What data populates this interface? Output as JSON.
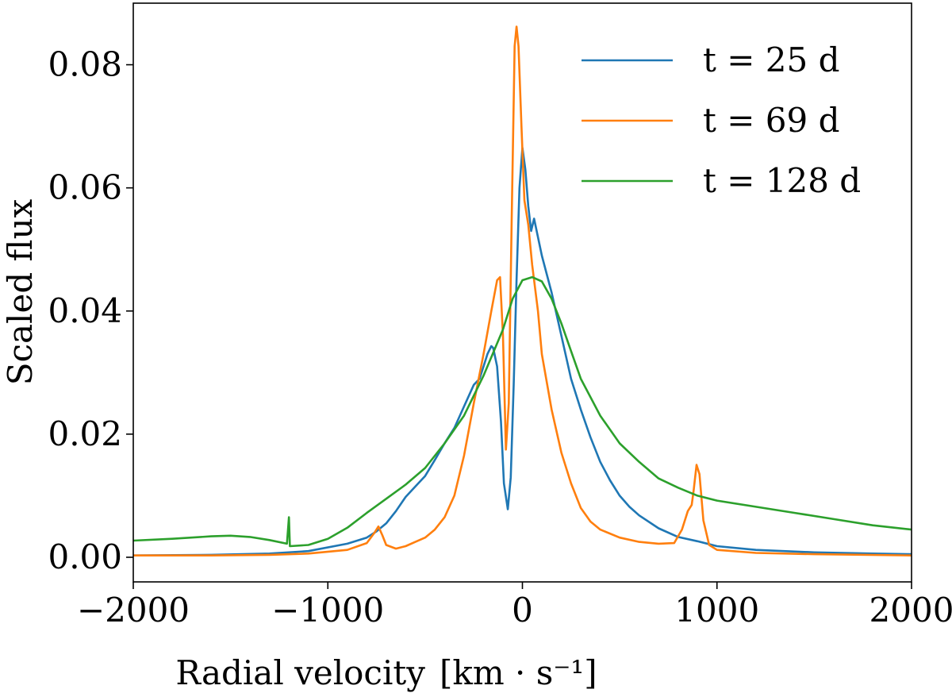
{
  "chart_data": {
    "type": "line",
    "title": "",
    "xlabel": "Radial velocity",
    "xlabel_unit": "[km · s⁻¹]",
    "ylabel": "Scaled flux",
    "xlim": [
      -2000,
      2000
    ],
    "ylim": [
      -0.004,
      0.09
    ],
    "xticks": [
      -2000,
      -1000,
      0,
      1000,
      2000
    ],
    "xtick_labels": [
      "−2000",
      "−1000",
      "0",
      "1000",
      "2000"
    ],
    "yticks": [
      0.0,
      0.02,
      0.04,
      0.06,
      0.08
    ],
    "ytick_labels": [
      "0.00",
      "0.02",
      "0.04",
      "0.06",
      "0.08"
    ],
    "legend_position": "top-right",
    "series": [
      {
        "name": "t = 25 d",
        "color": "#1f77b4",
        "points": [
          [
            -2000,
            0.0003
          ],
          [
            -1600,
            0.0004
          ],
          [
            -1300,
            0.0006
          ],
          [
            -1100,
            0.001
          ],
          [
            -900,
            0.0022
          ],
          [
            -800,
            0.0032
          ],
          [
            -750,
            0.0042
          ],
          [
            -700,
            0.0055
          ],
          [
            -650,
            0.0075
          ],
          [
            -600,
            0.0098
          ],
          [
            -550,
            0.0115
          ],
          [
            -500,
            0.0132
          ],
          [
            -450,
            0.0158
          ],
          [
            -400,
            0.0185
          ],
          [
            -350,
            0.021
          ],
          [
            -300,
            0.0245
          ],
          [
            -250,
            0.028
          ],
          [
            -220,
            0.029
          ],
          [
            -200,
            0.031
          ],
          [
            -180,
            0.033
          ],
          [
            -160,
            0.0343
          ],
          [
            -150,
            0.034
          ],
          [
            -130,
            0.031
          ],
          [
            -110,
            0.022
          ],
          [
            -95,
            0.012
          ],
          [
            -75,
            0.0078
          ],
          [
            -60,
            0.013
          ],
          [
            -45,
            0.028
          ],
          [
            -30,
            0.045
          ],
          [
            -15,
            0.06
          ],
          [
            0,
            0.0665
          ],
          [
            15,
            0.063
          ],
          [
            30,
            0.057
          ],
          [
            45,
            0.053
          ],
          [
            60,
            0.055
          ],
          [
            80,
            0.052
          ],
          [
            100,
            0.049
          ],
          [
            150,
            0.043
          ],
          [
            200,
            0.036
          ],
          [
            250,
            0.029
          ],
          [
            300,
            0.024
          ],
          [
            350,
            0.0195
          ],
          [
            400,
            0.0155
          ],
          [
            450,
            0.0125
          ],
          [
            500,
            0.01
          ],
          [
            550,
            0.0082
          ],
          [
            600,
            0.0068
          ],
          [
            700,
            0.0047
          ],
          [
            800,
            0.0033
          ],
          [
            900,
            0.0026
          ],
          [
            1000,
            0.0018
          ],
          [
            1200,
            0.0012
          ],
          [
            1500,
            0.0008
          ],
          [
            1800,
            0.0006
          ],
          [
            2000,
            0.0005
          ]
        ]
      },
      {
        "name": "t = 69 d",
        "color": "#ff7f0e",
        "points": [
          [
            -2000,
            0.0003
          ],
          [
            -1600,
            0.0003
          ],
          [
            -1300,
            0.0004
          ],
          [
            -1100,
            0.0006
          ],
          [
            -900,
            0.0012
          ],
          [
            -800,
            0.0023
          ],
          [
            -760,
            0.004
          ],
          [
            -740,
            0.005
          ],
          [
            -720,
            0.0036
          ],
          [
            -700,
            0.002
          ],
          [
            -650,
            0.0014
          ],
          [
            -600,
            0.0018
          ],
          [
            -550,
            0.0025
          ],
          [
            -500,
            0.0032
          ],
          [
            -450,
            0.0045
          ],
          [
            -400,
            0.0065
          ],
          [
            -350,
            0.01
          ],
          [
            -300,
            0.0165
          ],
          [
            -250,
            0.025
          ],
          [
            -200,
            0.033
          ],
          [
            -160,
            0.04
          ],
          [
            -130,
            0.045
          ],
          [
            -115,
            0.0455
          ],
          [
            -100,
            0.036
          ],
          [
            -85,
            0.0175
          ],
          [
            -70,
            0.025
          ],
          [
            -55,
            0.055
          ],
          [
            -40,
            0.083
          ],
          [
            -30,
            0.0862
          ],
          [
            -20,
            0.083
          ],
          [
            -5,
            0.07
          ],
          [
            10,
            0.058
          ],
          [
            30,
            0.054
          ],
          [
            50,
            0.0475
          ],
          [
            80,
            0.04
          ],
          [
            100,
            0.033
          ],
          [
            150,
            0.024
          ],
          [
            200,
            0.017
          ],
          [
            250,
            0.012
          ],
          [
            300,
            0.008
          ],
          [
            350,
            0.0058
          ],
          [
            400,
            0.0045
          ],
          [
            500,
            0.0032
          ],
          [
            600,
            0.0025
          ],
          [
            700,
            0.0022
          ],
          [
            780,
            0.0023
          ],
          [
            820,
            0.0045
          ],
          [
            850,
            0.0075
          ],
          [
            870,
            0.0085
          ],
          [
            880,
            0.0108
          ],
          [
            895,
            0.015
          ],
          [
            910,
            0.0135
          ],
          [
            930,
            0.006
          ],
          [
            960,
            0.002
          ],
          [
            1000,
            0.0012
          ],
          [
            1200,
            0.0007
          ],
          [
            1500,
            0.0005
          ],
          [
            2000,
            0.0003
          ]
        ]
      },
      {
        "name": "t = 128 d",
        "color": "#2ca02c",
        "points": [
          [
            -2000,
            0.0027
          ],
          [
            -1800,
            0.003
          ],
          [
            -1600,
            0.0034
          ],
          [
            -1500,
            0.0035
          ],
          [
            -1400,
            0.0033
          ],
          [
            -1300,
            0.0028
          ],
          [
            -1210,
            0.0022
          ],
          [
            -1200,
            0.0065
          ],
          [
            -1195,
            0.0018
          ],
          [
            -1100,
            0.002
          ],
          [
            -1000,
            0.003
          ],
          [
            -900,
            0.0048
          ],
          [
            -800,
            0.0072
          ],
          [
            -700,
            0.0095
          ],
          [
            -600,
            0.0118
          ],
          [
            -500,
            0.0145
          ],
          [
            -400,
            0.0185
          ],
          [
            -300,
            0.023
          ],
          [
            -200,
            0.0295
          ],
          [
            -100,
            0.037
          ],
          [
            -50,
            0.042
          ],
          [
            0,
            0.045
          ],
          [
            50,
            0.0455
          ],
          [
            100,
            0.0448
          ],
          [
            150,
            0.042
          ],
          [
            200,
            0.038
          ],
          [
            250,
            0.0335
          ],
          [
            300,
            0.029
          ],
          [
            400,
            0.023
          ],
          [
            500,
            0.0185
          ],
          [
            600,
            0.0155
          ],
          [
            700,
            0.0128
          ],
          [
            800,
            0.0113
          ],
          [
            900,
            0.01
          ],
          [
            1000,
            0.0092
          ],
          [
            1200,
            0.0082
          ],
          [
            1400,
            0.0072
          ],
          [
            1600,
            0.0062
          ],
          [
            1800,
            0.0052
          ],
          [
            2000,
            0.0045
          ]
        ]
      }
    ]
  }
}
